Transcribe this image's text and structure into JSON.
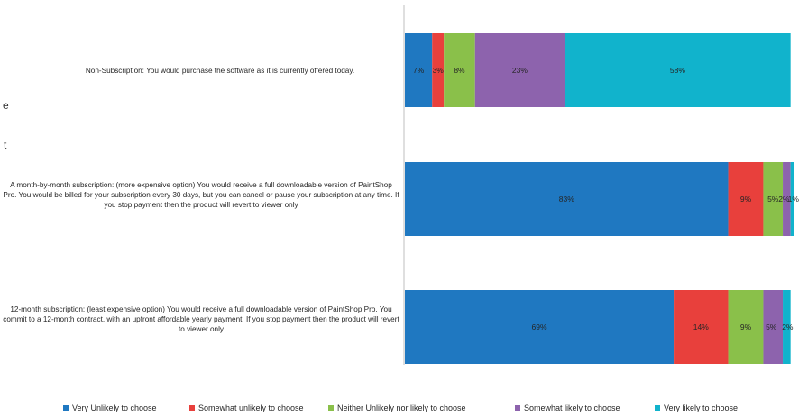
{
  "fragments": [
    "e",
    "t"
  ],
  "chart_data": {
    "type": "bar",
    "orientation": "horizontal",
    "stacked": true,
    "percent": true,
    "categories": [
      "Non-Subscription: You would purchase the software as it is currently offered today.",
      "A month-by-month subscription: (more expensive option) You would receive a full downloadable version of PaintShop Pro. You would be billed for your subscription every 30 days, but you can cancel or pause your subscription at any time.  If you stop payment then the product will revert to viewer only",
      "12-month subscription: (least expensive option) You would receive a full downloadable version of PaintShop Pro. You commit to a 12-month contract, with an upfront affordable yearly payment. If you stop payment then the product will revert to viewer only"
    ],
    "series": [
      {
        "name": "Very Unlikely to choose",
        "color": "#1f78c1",
        "values": [
          7,
          83,
          69
        ]
      },
      {
        "name": "Somewhat unlikely to choose",
        "color": "#e8403c",
        "values": [
          3,
          9,
          14
        ]
      },
      {
        "name": "Neither Unlikely nor likely to choose",
        "color": "#8ac04a",
        "values": [
          8,
          5,
          9
        ]
      },
      {
        "name": "Somewhat likely to choose",
        "color": "#8d63ad",
        "values": [
          23,
          2,
          5
        ]
      },
      {
        "name": "Very likely to choose",
        "color": "#11b3cc",
        "values": [
          58,
          1,
          2
        ]
      }
    ],
    "data_labels": [
      [
        "7%",
        "3%",
        "8%",
        "23%",
        "58%"
      ],
      [
        "83%",
        "9%",
        "5%",
        "2%",
        "1%"
      ],
      [
        "69%",
        "14%",
        "9%",
        "5%",
        "2%"
      ]
    ],
    "xlim": [
      0,
      100
    ],
    "grid": false,
    "legend_position": "bottom"
  }
}
